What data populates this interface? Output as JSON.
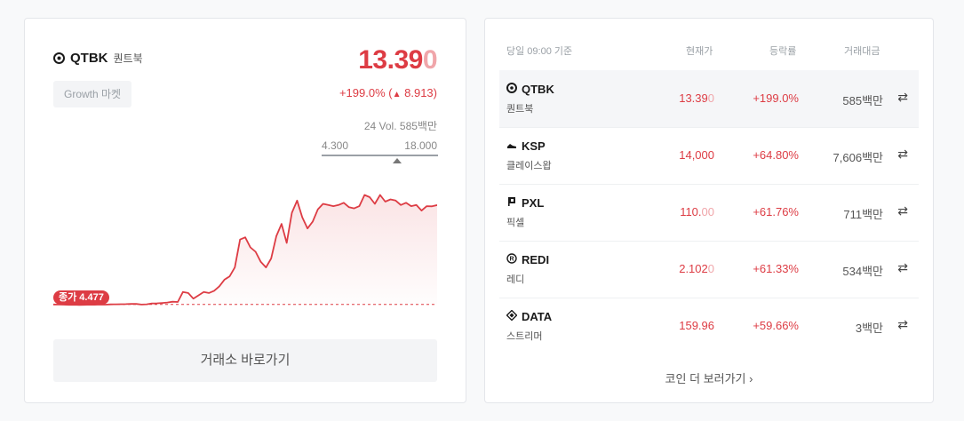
{
  "coin": {
    "ticker": "QTBK",
    "korean_name": "퀀트북",
    "market_badge": "Growth 마켓",
    "price_main": "13.39",
    "price_tail": "0",
    "change_text": "+199.0% (",
    "change_arrow": "▲",
    "change_value": "8.913)",
    "volume_text": "24 Vol. 585백만",
    "range_low": "4.300",
    "range_high": "18.000",
    "close_badge": "종가 4.477",
    "exchange_button": "거래소 바로가기"
  },
  "chart_data": {
    "type": "line",
    "title": "",
    "xlabel": "",
    "ylabel": "",
    "reference_close": 4.477,
    "ylim": [
      4.0,
      18.0
    ],
    "values": [
      4.477,
      4.47,
      4.46,
      4.44,
      4.45,
      4.43,
      4.44,
      4.46,
      4.45,
      4.47,
      4.46,
      4.48,
      4.49,
      4.5,
      4.51,
      4.53,
      4.52,
      4.47,
      4.49,
      4.56,
      4.58,
      4.61,
      4.65,
      4.72,
      4.7,
      5.6,
      5.5,
      5.0,
      5.3,
      5.6,
      5.5,
      5.7,
      6.1,
      6.7,
      7.0,
      7.8,
      10.3,
      10.5,
      9.6,
      9.2,
      8.3,
      7.8,
      8.6,
      10.6,
      11.7,
      10.0,
      12.7,
      13.8,
      12.3,
      11.3,
      11.9,
      13.0,
      13.5,
      13.4,
      13.3,
      13.4,
      13.6,
      13.2,
      13.1,
      13.3,
      14.3,
      14.1,
      13.5,
      14.3,
      13.7,
      13.9,
      13.8,
      13.4,
      13.6,
      13.3,
      13.4,
      12.9,
      13.3,
      13.28,
      13.39
    ]
  },
  "table": {
    "header": {
      "time": "당일 09:00 기준",
      "price": "현재가",
      "change": "등락률",
      "volume": "거래대금"
    },
    "rows": [
      {
        "ticker": "QTBK",
        "name": "퀀트북",
        "price": "13.39",
        "price_tail": "0",
        "change": "+199.0%",
        "volume": "585백만",
        "icon": "ring-icon",
        "selected": true
      },
      {
        "ticker": "KSP",
        "name": "클레이스왑",
        "price": "14,000",
        "price_tail": "",
        "change": "+64.80%",
        "volume": "7,606백만",
        "icon": "shoe-icon",
        "selected": false
      },
      {
        "ticker": "PXL",
        "name": "픽셀",
        "price": "110.",
        "price_tail": "00",
        "change": "+61.76%",
        "volume": "711백만",
        "icon": "flag-icon",
        "selected": false
      },
      {
        "ticker": "REDI",
        "name": "레디",
        "price": "2.102",
        "price_tail": "0",
        "change": "+61.33%",
        "volume": "534백만",
        "icon": "r-circle-icon",
        "selected": false
      },
      {
        "ticker": "DATA",
        "name": "스트리머",
        "price": "159.96",
        "price_tail": "",
        "change": "+59.66%",
        "volume": "3백만",
        "icon": "diamond-icon",
        "selected": false
      }
    ],
    "swap_glyph": "⇄",
    "more_link": "코인 더 보러가기 ›"
  },
  "colors": {
    "up": "#dd3c44",
    "up_fade": "#f0a6aa",
    "muted": "#9aa0a6"
  }
}
